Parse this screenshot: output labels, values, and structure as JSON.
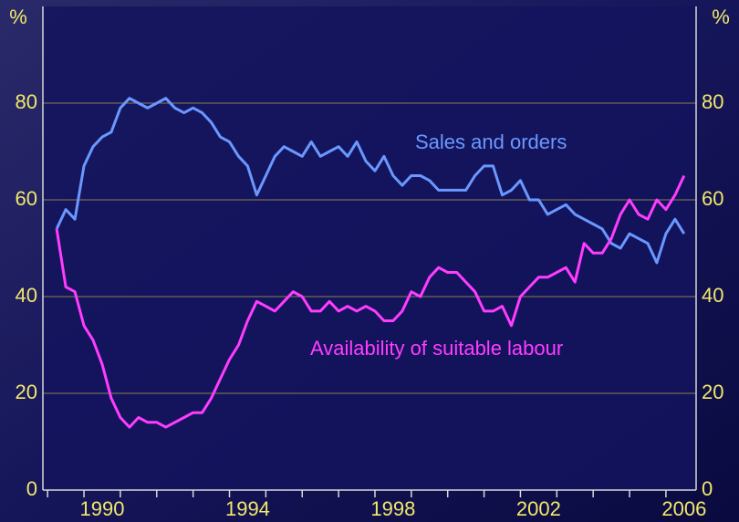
{
  "chart_data": {
    "type": "line",
    "y_label": "%",
    "x": [
      1989.25,
      1989.5,
      1989.75,
      1990,
      1990.25,
      1990.5,
      1990.75,
      1991,
      1991.25,
      1991.5,
      1991.75,
      1992,
      1992.25,
      1992.5,
      1992.75,
      1993,
      1993.25,
      1993.5,
      1993.75,
      1994,
      1994.25,
      1994.5,
      1994.75,
      1995,
      1995.25,
      1995.5,
      1995.75,
      1996,
      1996.25,
      1996.5,
      1996.75,
      1997,
      1997.25,
      1997.5,
      1997.75,
      1998,
      1998.25,
      1998.5,
      1998.75,
      1999,
      1999.25,
      1999.5,
      1999.75,
      2000,
      2000.25,
      2000.5,
      2000.75,
      2001,
      2001.25,
      2001.5,
      2001.75,
      2002,
      2002.25,
      2002.5,
      2002.75,
      2003,
      2003.25,
      2003.5,
      2003.75,
      2004,
      2004.25,
      2004.5,
      2004.75,
      2005,
      2005.25,
      2005.5,
      2005.75,
      2006,
      2006.25,
      2006.5
    ],
    "series": [
      {
        "name": "Sales and orders",
        "color": "#6a98ff",
        "values": [
          54,
          58,
          56,
          67,
          71,
          73,
          74,
          79,
          81,
          80,
          79,
          80,
          81,
          79,
          78,
          79,
          78,
          76,
          73,
          72,
          69,
          67,
          61,
          65,
          69,
          71,
          70,
          69,
          72,
          69,
          70,
          71,
          69,
          72,
          68,
          66,
          69,
          65,
          63,
          65,
          65,
          64,
          62,
          62,
          62,
          62,
          65,
          67,
          67,
          61,
          62,
          64,
          60,
          60,
          57,
          58,
          59,
          57,
          56,
          55,
          54,
          51,
          50,
          53,
          52,
          51,
          47,
          53,
          56,
          53
        ]
      },
      {
        "name": "Availability of suitable labour",
        "color": "#ff3cff",
        "values": [
          54,
          42,
          41,
          34,
          31,
          26,
          19,
          15,
          13,
          15,
          14,
          14,
          13,
          14,
          15,
          16,
          16,
          19,
          23,
          27,
          30,
          35,
          39,
          38,
          37,
          39,
          41,
          40,
          37,
          37,
          39,
          37,
          38,
          37,
          38,
          37,
          35,
          35,
          37,
          41,
          40,
          44,
          46,
          45,
          45,
          43,
          41,
          37,
          37,
          38,
          34,
          40,
          42,
          44,
          44,
          45,
          46,
          43,
          51,
          49,
          49,
          52,
          57,
          60,
          57,
          56,
          60,
          58,
          61,
          65
        ]
      }
    ],
    "xlim": [
      1988.87,
      2006.83
    ],
    "xticks": [
      {
        "value": 1990.5,
        "label": "1990"
      },
      {
        "value": 1994.5,
        "label": "1994"
      },
      {
        "value": 1998.5,
        "label": "1998"
      },
      {
        "value": 2002.5,
        "label": "2002"
      },
      {
        "value": 2006.5,
        "label": "2006"
      }
    ],
    "xminorticks": [
      1989,
      1990,
      1991,
      1992,
      1993,
      1994,
      1995,
      1996,
      1997,
      1998,
      1999,
      2000,
      2001,
      2002,
      2003,
      2004,
      2005,
      2006
    ],
    "ylim": [
      0,
      100
    ],
    "yticks": [
      0,
      20,
      40,
      60,
      80
    ],
    "grid": true
  }
}
